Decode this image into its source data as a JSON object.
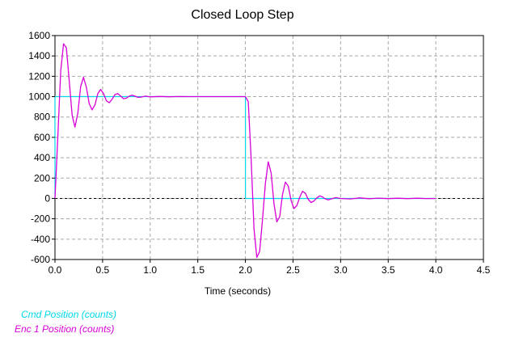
{
  "chart_data": {
    "type": "line",
    "title": "Closed Loop Step",
    "xlabel": "Time (seconds)",
    "ylabel": "",
    "xlim": [
      0.0,
      4.5
    ],
    "ylim": [
      -600,
      1600
    ],
    "x_ticks": [
      0.0,
      0.5,
      1.0,
      1.5,
      2.0,
      2.5,
      3.0,
      3.5,
      4.0,
      4.5
    ],
    "x_tick_labels": [
      "0.0",
      "0.5",
      "1.0",
      "1.5",
      "2.0",
      "2.5",
      "3.0",
      "3.5",
      "4.0",
      "4.5"
    ],
    "y_ticks": [
      -600,
      -400,
      -200,
      0,
      200,
      400,
      600,
      800,
      1000,
      1200,
      1400,
      1600
    ],
    "y_tick_labels": [
      "-600",
      "-400",
      "-200",
      "0",
      "200",
      "400",
      "600",
      "800",
      "1000",
      "1200",
      "1400",
      "1600"
    ],
    "grid": true,
    "zero_line": true,
    "legend_position": "bottom-left",
    "series": [
      {
        "name": "Cmd Position (counts)",
        "color": "#00d8e8",
        "x": [
          0.0,
          0.0,
          2.0,
          2.0,
          4.0
        ],
        "y": [
          0,
          1000,
          1000,
          0,
          0
        ]
      },
      {
        "name": "Enc 1 Position (counts)",
        "color": "#d800d8",
        "x": [
          0.0,
          0.03,
          0.06,
          0.09,
          0.12,
          0.15,
          0.18,
          0.21,
          0.24,
          0.27,
          0.3,
          0.33,
          0.36,
          0.39,
          0.42,
          0.45,
          0.48,
          0.51,
          0.54,
          0.57,
          0.6,
          0.63,
          0.66,
          0.69,
          0.72,
          0.75,
          0.78,
          0.81,
          0.84,
          0.87,
          0.9,
          0.95,
          1.0,
          1.1,
          1.2,
          1.3,
          1.4,
          1.5,
          1.6,
          1.7,
          1.8,
          1.9,
          2.0,
          2.03,
          2.06,
          2.09,
          2.12,
          2.15,
          2.18,
          2.21,
          2.24,
          2.27,
          2.3,
          2.33,
          2.36,
          2.39,
          2.42,
          2.45,
          2.48,
          2.51,
          2.54,
          2.57,
          2.6,
          2.63,
          2.66,
          2.69,
          2.72,
          2.75,
          2.78,
          2.81,
          2.84,
          2.87,
          2.9,
          2.95,
          3.0,
          3.1,
          3.2,
          3.3,
          3.4,
          3.5,
          3.6,
          3.7,
          3.8,
          3.9,
          4.0
        ],
        "y": [
          0,
          600,
          1250,
          1520,
          1480,
          1150,
          820,
          700,
          840,
          1100,
          1190,
          1090,
          930,
          870,
          920,
          1030,
          1070,
          1030,
          960,
          940,
          975,
          1020,
          1030,
          1005,
          980,
          985,
          1005,
          1015,
          1005,
          993,
          995,
          1005,
          998,
          1002,
          999,
          1001,
          1000,
          1000,
          1000,
          1000,
          1000,
          1000,
          1000,
          950,
          400,
          -300,
          -580,
          -520,
          -200,
          150,
          360,
          250,
          -50,
          -230,
          -180,
          40,
          160,
          120,
          -20,
          -100,
          -70,
          10,
          70,
          50,
          -10,
          -40,
          -25,
          5,
          25,
          15,
          -5,
          -15,
          -5,
          8,
          0,
          -5,
          5,
          -3,
          3,
          -2,
          2,
          -2,
          2,
          -1,
          0
        ]
      }
    ]
  }
}
